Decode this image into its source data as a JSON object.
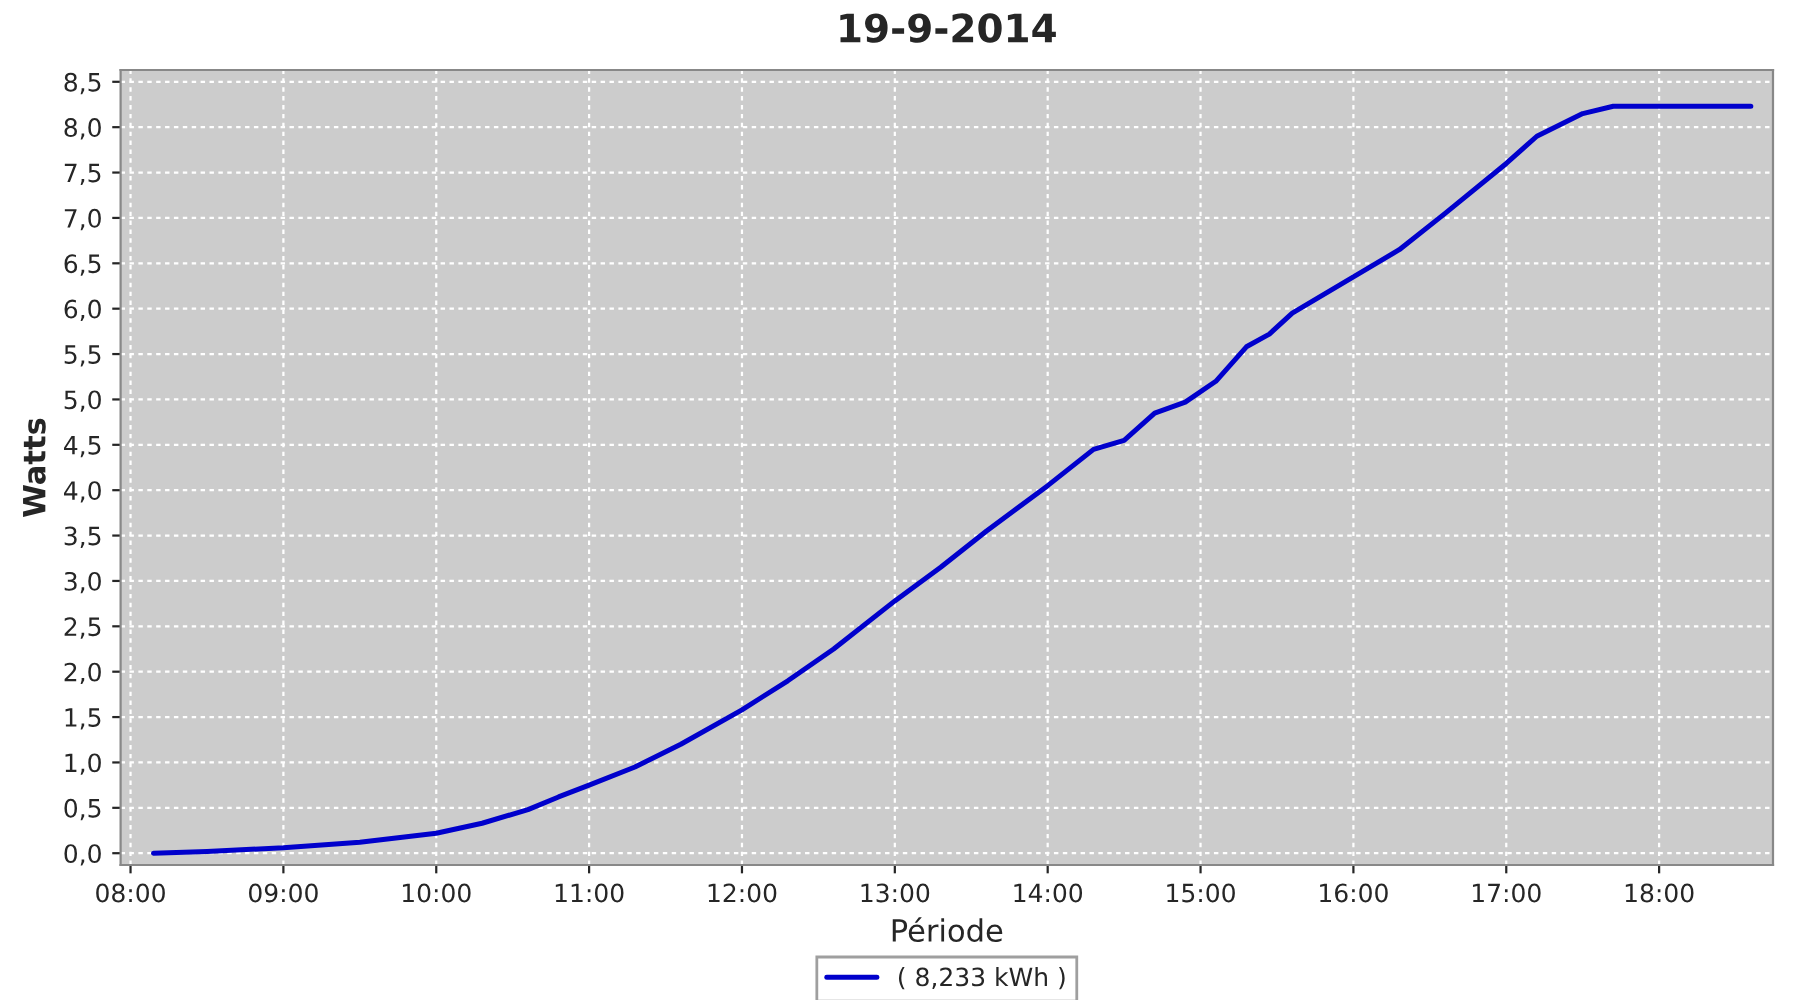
{
  "chart_data": {
    "type": "line",
    "title": "19-9-2014",
    "xlabel": "Période",
    "ylabel": "Watts",
    "xlim": [
      7.935,
      18.745
    ],
    "ylim": [
      -0.13,
      8.63
    ],
    "xticks": [
      {
        "value": 8,
        "label": "08:00"
      },
      {
        "value": 9,
        "label": "09:00"
      },
      {
        "value": 10,
        "label": "10:00"
      },
      {
        "value": 11,
        "label": "11:00"
      },
      {
        "value": 12,
        "label": "12:00"
      },
      {
        "value": 13,
        "label": "13:00"
      },
      {
        "value": 14,
        "label": "14:00"
      },
      {
        "value": 15,
        "label": "15:00"
      },
      {
        "value": 16,
        "label": "16:00"
      },
      {
        "value": 17,
        "label": "17:00"
      },
      {
        "value": 18,
        "label": "18:00"
      }
    ],
    "yticks": [
      {
        "value": 0,
        "label": "0,0"
      },
      {
        "value": 0.5,
        "label": "0,5"
      },
      {
        "value": 1,
        "label": "1,0"
      },
      {
        "value": 1.5,
        "label": "1,5"
      },
      {
        "value": 2,
        "label": "2,0"
      },
      {
        "value": 2.5,
        "label": "2,5"
      },
      {
        "value": 3,
        "label": "3,0"
      },
      {
        "value": 3.5,
        "label": "3,5"
      },
      {
        "value": 4,
        "label": "4,0"
      },
      {
        "value": 4.5,
        "label": "4,5"
      },
      {
        "value": 5,
        "label": "5,0"
      },
      {
        "value": 5.5,
        "label": "5,5"
      },
      {
        "value": 6,
        "label": "6,0"
      },
      {
        "value": 6.5,
        "label": "6,5"
      },
      {
        "value": 7,
        "label": "7,0"
      },
      {
        "value": 7.5,
        "label": "7,5"
      },
      {
        "value": 8,
        "label": "8,0"
      },
      {
        "value": 8.5,
        "label": "8,5"
      }
    ],
    "grid": true,
    "legend": "bottom",
    "marker": "none",
    "line_style": "solid",
    "series": [
      {
        "name": "( 8,233 kWh )",
        "color": "#0000cc",
        "x": [
          8.15,
          8.5,
          9.0,
          9.5,
          10.0,
          10.3,
          10.6,
          10.8,
          11.0,
          11.3,
          11.6,
          12.0,
          12.3,
          12.6,
          13.0,
          13.3,
          13.6,
          14.0,
          14.3,
          14.5,
          14.7,
          14.9,
          15.1,
          15.3,
          15.45,
          15.6,
          16.0,
          16.3,
          16.6,
          17.0,
          17.2,
          17.5,
          17.7,
          18.0,
          18.6
        ],
        "values": [
          0.0,
          0.02,
          0.06,
          0.12,
          0.22,
          0.33,
          0.48,
          0.62,
          0.75,
          0.95,
          1.2,
          1.58,
          1.9,
          2.25,
          2.78,
          3.15,
          3.55,
          4.05,
          4.45,
          4.55,
          4.85,
          4.97,
          5.2,
          5.58,
          5.72,
          5.95,
          6.35,
          6.65,
          7.05,
          7.6,
          7.9,
          8.15,
          8.23,
          8.23,
          8.23
        ]
      }
    ]
  }
}
